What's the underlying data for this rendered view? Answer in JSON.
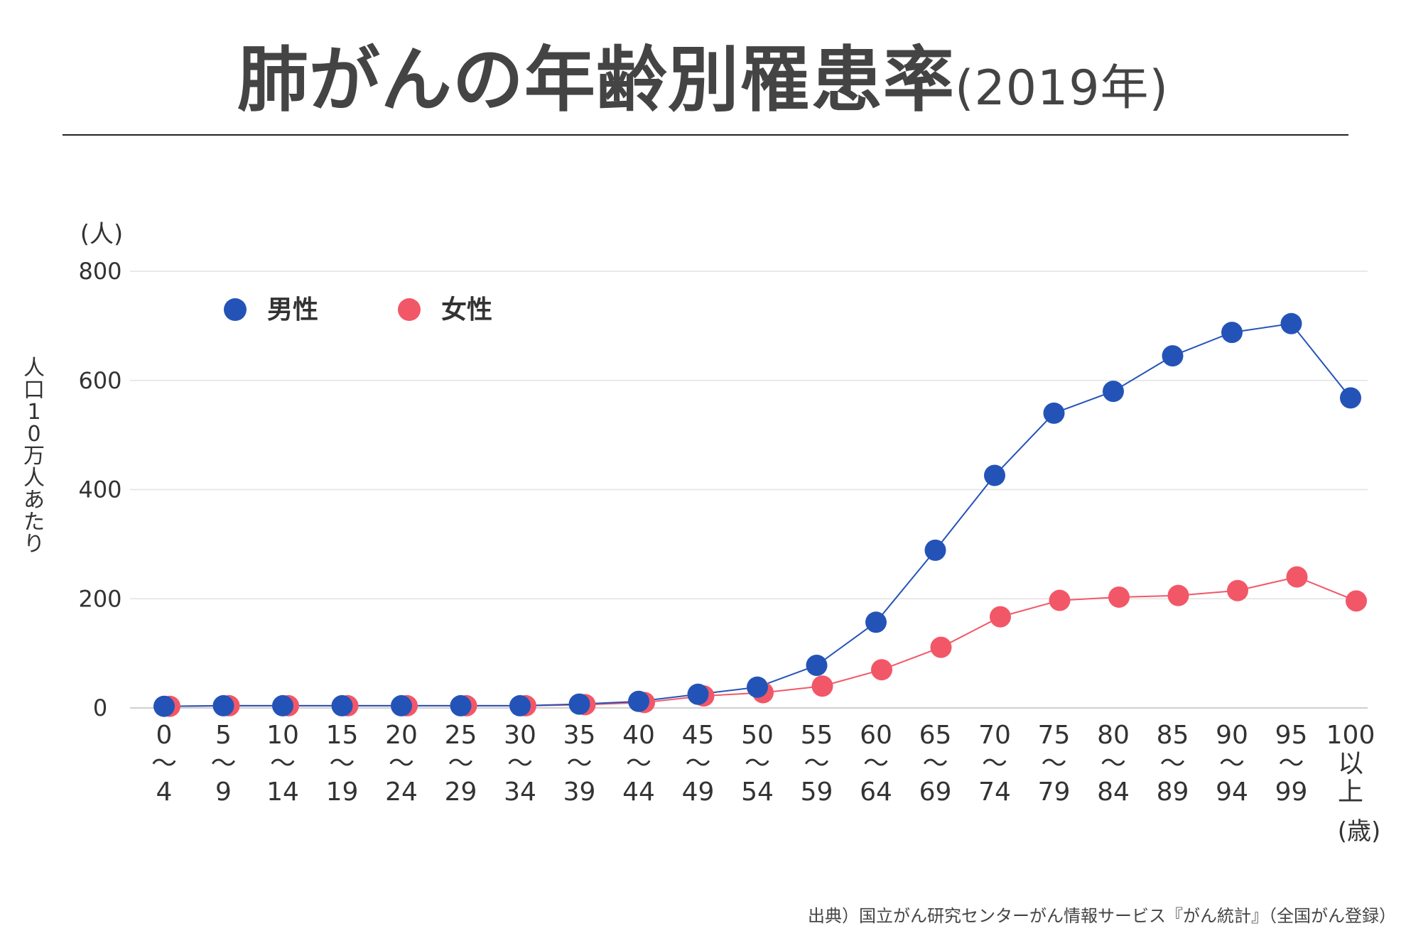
{
  "title": {
    "main": "肺がんの年齢別罹患率",
    "year": "(2019年)"
  },
  "chart_data": {
    "type": "line",
    "title": "肺がんの年齢別罹患率(2019年)",
    "y_unit": "(人)",
    "ylabel": "人口10万人あたり",
    "x_unit": "(歳)",
    "ylim": [
      0,
      800
    ],
    "yticks": [
      0,
      200,
      400,
      600,
      800
    ],
    "grid": true,
    "legend_placement": "top-left",
    "categories": [
      [
        "0",
        "〜",
        "4"
      ],
      [
        "5",
        "〜",
        "9"
      ],
      [
        "10",
        "〜",
        "14"
      ],
      [
        "15",
        "〜",
        "19"
      ],
      [
        "20",
        "〜",
        "24"
      ],
      [
        "25",
        "〜",
        "29"
      ],
      [
        "30",
        "〜",
        "34"
      ],
      [
        "35",
        "〜",
        "39"
      ],
      [
        "40",
        "〜",
        "44"
      ],
      [
        "45",
        "〜",
        "49"
      ],
      [
        "50",
        "〜",
        "54"
      ],
      [
        "55",
        "〜",
        "59"
      ],
      [
        "60",
        "〜",
        "64"
      ],
      [
        "65",
        "〜",
        "69"
      ],
      [
        "70",
        "〜",
        "74"
      ],
      [
        "75",
        "〜",
        "79"
      ],
      [
        "80",
        "〜",
        "84"
      ],
      [
        "85",
        "〜",
        "89"
      ],
      [
        "90",
        "〜",
        "94"
      ],
      [
        "95",
        "〜",
        "99"
      ],
      [
        "100",
        "以",
        "上"
      ]
    ],
    "series": [
      {
        "name": "男性",
        "color": "#2453b8",
        "values": [
          3,
          4,
          4,
          4,
          4,
          4,
          4,
          7,
          12,
          25,
          38,
          78,
          157,
          289,
          426,
          540,
          580,
          645,
          688,
          704,
          568
        ]
      },
      {
        "name": "女性",
        "color": "#f25767",
        "values": [
          3,
          4,
          4,
          4,
          4,
          4,
          4,
          6,
          10,
          22,
          28,
          40,
          70,
          111,
          167,
          197,
          203,
          206,
          215,
          240,
          196
        ]
      }
    ]
  },
  "source": "出典）国立がん研究センターがん情報サービス『がん統計』（全国がん登録）"
}
